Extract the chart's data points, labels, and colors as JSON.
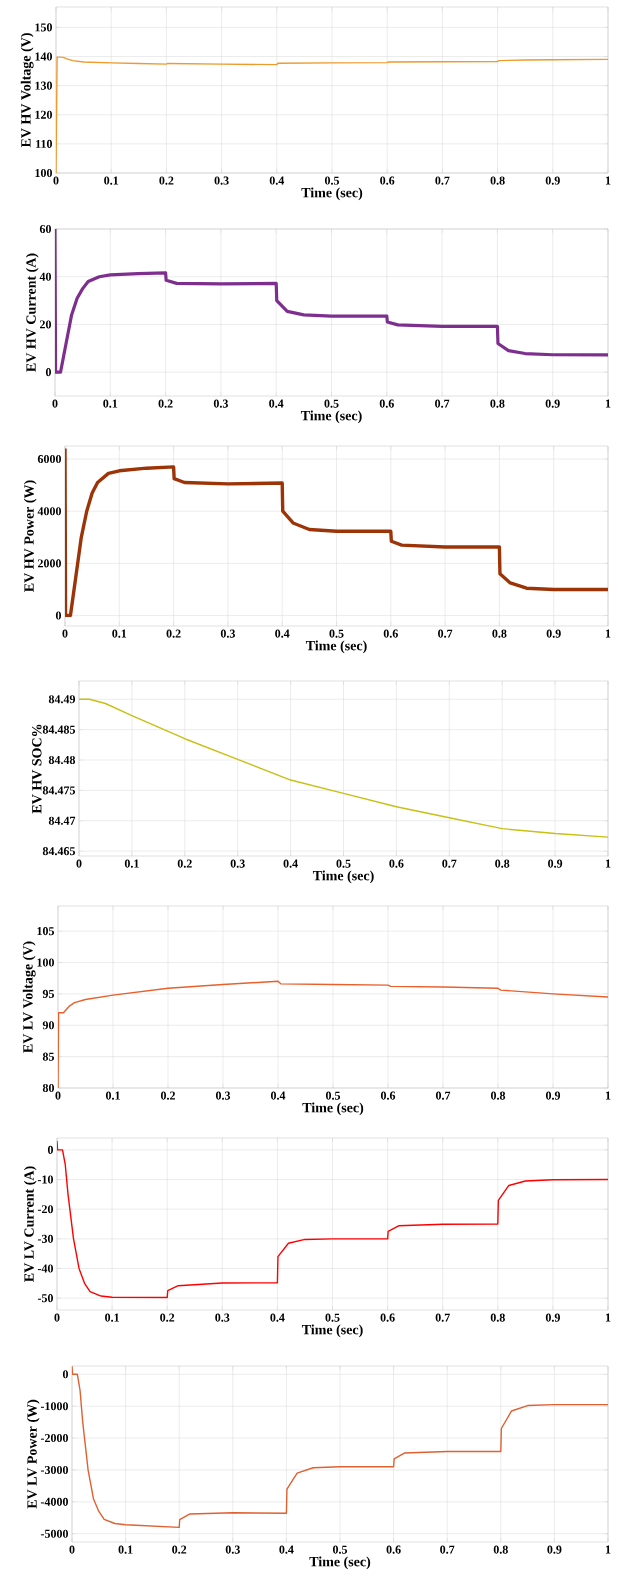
{
  "chart_data": [
    {
      "type": "line",
      "xlabel": "Time (sec)",
      "ylabel": "EV HV Voltage (V)",
      "color": "#ee9a2c",
      "grid": true,
      "xlim": [
        0,
        1
      ],
      "ylim": [
        100,
        157
      ],
      "xticks": [
        0,
        0.1,
        0.2,
        0.3,
        0.4,
        0.5,
        0.6,
        0.7,
        0.8,
        0.9,
        1
      ],
      "yticks": [
        100,
        110,
        120,
        130,
        140,
        150
      ],
      "x": [
        0,
        0.002,
        0.012,
        0.02,
        0.03,
        0.05,
        0.1,
        0.15,
        0.2,
        0.202,
        0.3,
        0.4,
        0.402,
        0.5,
        0.6,
        0.602,
        0.7,
        0.8,
        0.803,
        0.85,
        0.9,
        1
      ],
      "values": [
        100,
        139.8,
        139.8,
        139.2,
        138.6,
        138.1,
        137.8,
        137.6,
        137.4,
        137.6,
        137.4,
        137.2,
        137.7,
        137.8,
        137.9,
        138.1,
        138.2,
        138.3,
        138.6,
        138.8,
        138.9,
        139
      ]
    },
    {
      "type": "line",
      "xlabel": "Time (sec)",
      "ylabel": "EV HV Current (A)",
      "color": "#7e2f8e",
      "grid": true,
      "xlim": [
        0,
        1
      ],
      "ylim": [
        -10,
        60
      ],
      "xticks": [
        0,
        0.1,
        0.2,
        0.3,
        0.4,
        0.5,
        0.6,
        0.7,
        0.8,
        0.9,
        1
      ],
      "yticks": [
        0,
        20,
        40,
        60
      ],
      "x": [
        0,
        0.001,
        0.01,
        0.02,
        0.03,
        0.04,
        0.05,
        0.06,
        0.08,
        0.1,
        0.15,
        0.2,
        0.201,
        0.22,
        0.3,
        0.4,
        0.401,
        0.42,
        0.45,
        0.5,
        0.6,
        0.601,
        0.62,
        0.7,
        0.8,
        0.801,
        0.82,
        0.85,
        0.9,
        1
      ],
      "values": [
        60,
        0,
        0,
        12,
        24,
        31,
        35,
        38,
        40,
        40.8,
        41.3,
        41.6,
        38.5,
        37.2,
        37,
        37.2,
        30,
        25.5,
        24,
        23.5,
        23.5,
        21,
        19.8,
        19.2,
        19.2,
        12,
        9,
        7.8,
        7.3,
        7.2
      ]
    },
    {
      "type": "line",
      "xlabel": "Time (sec)",
      "ylabel": "EV HV Power (W)",
      "color": "#9c3408",
      "grid": true,
      "xlim": [
        0,
        1
      ],
      "ylim": [
        -400,
        6500
      ],
      "xticks": [
        0,
        0.1,
        0.2,
        0.3,
        0.4,
        0.5,
        0.6,
        0.7,
        0.8,
        0.9,
        1
      ],
      "yticks": [
        0,
        2000,
        4000,
        6000
      ],
      "x": [
        0,
        0.001,
        0.01,
        0.02,
        0.03,
        0.04,
        0.05,
        0.06,
        0.08,
        0.1,
        0.15,
        0.2,
        0.201,
        0.22,
        0.3,
        0.4,
        0.401,
        0.42,
        0.45,
        0.5,
        0.6,
        0.601,
        0.62,
        0.7,
        0.8,
        0.801,
        0.82,
        0.85,
        0.9,
        1
      ],
      "values": [
        6400,
        0,
        0,
        1500,
        3000,
        4000,
        4700,
        5100,
        5450,
        5550,
        5650,
        5700,
        5250,
        5100,
        5050,
        5080,
        4000,
        3550,
        3300,
        3230,
        3230,
        2850,
        2700,
        2630,
        2630,
        1600,
        1250,
        1050,
        1000,
        1000
      ]
    },
    {
      "type": "line",
      "xlabel": "Time (sec)",
      "ylabel": "EV HV SOC%",
      "color": "#c8c014",
      "grid": true,
      "xlim": [
        0,
        1
      ],
      "ylim": [
        84.4642,
        84.493
      ],
      "xticks": [
        0,
        0.1,
        0.2,
        0.3,
        0.4,
        0.5,
        0.6,
        0.7,
        0.8,
        0.9,
        1
      ],
      "yticks": [
        84.465,
        84.47,
        84.475,
        84.48,
        84.485,
        84.49
      ],
      "x": [
        0,
        0.02,
        0.05,
        0.1,
        0.2,
        0.3,
        0.4,
        0.5,
        0.6,
        0.7,
        0.8,
        0.9,
        1
      ],
      "values": [
        84.49,
        84.49,
        84.4893,
        84.4873,
        84.4835,
        84.4801,
        84.4767,
        84.4745,
        84.4723,
        84.4705,
        84.4687,
        84.4679,
        84.4673
      ]
    },
    {
      "type": "line",
      "xlabel": "Time (sec)",
      "ylabel": "EV LV Voltage (V)",
      "color": "#e8602c",
      "grid": true,
      "xlim": [
        0,
        1
      ],
      "ylim": [
        80,
        109
      ],
      "xticks": [
        0,
        0.1,
        0.2,
        0.3,
        0.4,
        0.5,
        0.6,
        0.7,
        0.8,
        0.9,
        1
      ],
      "yticks": [
        80,
        85,
        90,
        95,
        100,
        105
      ],
      "x": [
        0,
        0.001,
        0.01,
        0.02,
        0.03,
        0.05,
        0.1,
        0.2,
        0.3,
        0.4,
        0.405,
        0.5,
        0.6,
        0.605,
        0.7,
        0.8,
        0.805,
        0.9,
        1
      ],
      "values": [
        80,
        92,
        92,
        93,
        93.6,
        94.1,
        94.8,
        95.9,
        96.5,
        97,
        96.6,
        96.5,
        96.4,
        96.2,
        96.1,
        95.9,
        95.6,
        95,
        94.5
      ]
    },
    {
      "type": "line",
      "xlabel": "Time (sec)",
      "ylabel": "EV LV Current (A)",
      "color": "#ff0000",
      "grid": true,
      "xlim": [
        0,
        1
      ],
      "ylim": [
        -54,
        4
      ],
      "xticks": [
        0,
        0.1,
        0.2,
        0.3,
        0.4,
        0.5,
        0.6,
        0.7,
        0.8,
        0.9,
        1
      ],
      "yticks": [
        -50,
        -40,
        -30,
        -20,
        -10,
        0
      ],
      "x": [
        0,
        0.001,
        0.01,
        0.015,
        0.02,
        0.03,
        0.04,
        0.05,
        0.06,
        0.08,
        0.1,
        0.2,
        0.201,
        0.22,
        0.3,
        0.4,
        0.401,
        0.42,
        0.45,
        0.5,
        0.6,
        0.601,
        0.62,
        0.7,
        0.8,
        0.801,
        0.82,
        0.85,
        0.9,
        1
      ],
      "values": [
        3,
        0,
        0,
        -5,
        -15,
        -30,
        -40,
        -45,
        -47.8,
        -49.3,
        -49.7,
        -49.8,
        -47.5,
        -45.8,
        -44.9,
        -44.8,
        -36,
        -31.5,
        -30.2,
        -30,
        -30,
        -27.5,
        -25.6,
        -25.1,
        -25,
        -17,
        -12,
        -10.5,
        -10.1,
        -10
      ]
    },
    {
      "type": "line",
      "xlabel": "Time (sec)",
      "ylabel": "EV LV Power (W)",
      "color": "#e06030",
      "grid": true,
      "xlim": [
        0,
        1
      ],
      "ylim": [
        -5260,
        260
      ],
      "xticks": [
        0,
        0.1,
        0.2,
        0.3,
        0.4,
        0.5,
        0.6,
        0.7,
        0.8,
        0.9,
        1
      ],
      "yticks": [
        -5000,
        -4000,
        -3000,
        -2000,
        -1000,
        0
      ],
      "x": [
        0,
        0.001,
        0.01,
        0.015,
        0.02,
        0.03,
        0.04,
        0.05,
        0.06,
        0.08,
        0.1,
        0.15,
        0.2,
        0.201,
        0.22,
        0.3,
        0.4,
        0.401,
        0.42,
        0.45,
        0.5,
        0.6,
        0.601,
        0.62,
        0.7,
        0.8,
        0.801,
        0.82,
        0.85,
        0.9,
        1
      ],
      "values": [
        250,
        0,
        0,
        -500,
        -1500,
        -3000,
        -3900,
        -4300,
        -4550,
        -4680,
        -4720,
        -4760,
        -4800,
        -4560,
        -4380,
        -4340,
        -4360,
        -3600,
        -3100,
        -2930,
        -2900,
        -2900,
        -2650,
        -2470,
        -2420,
        -2420,
        -1700,
        -1150,
        -980,
        -950,
        -950
      ]
    }
  ]
}
